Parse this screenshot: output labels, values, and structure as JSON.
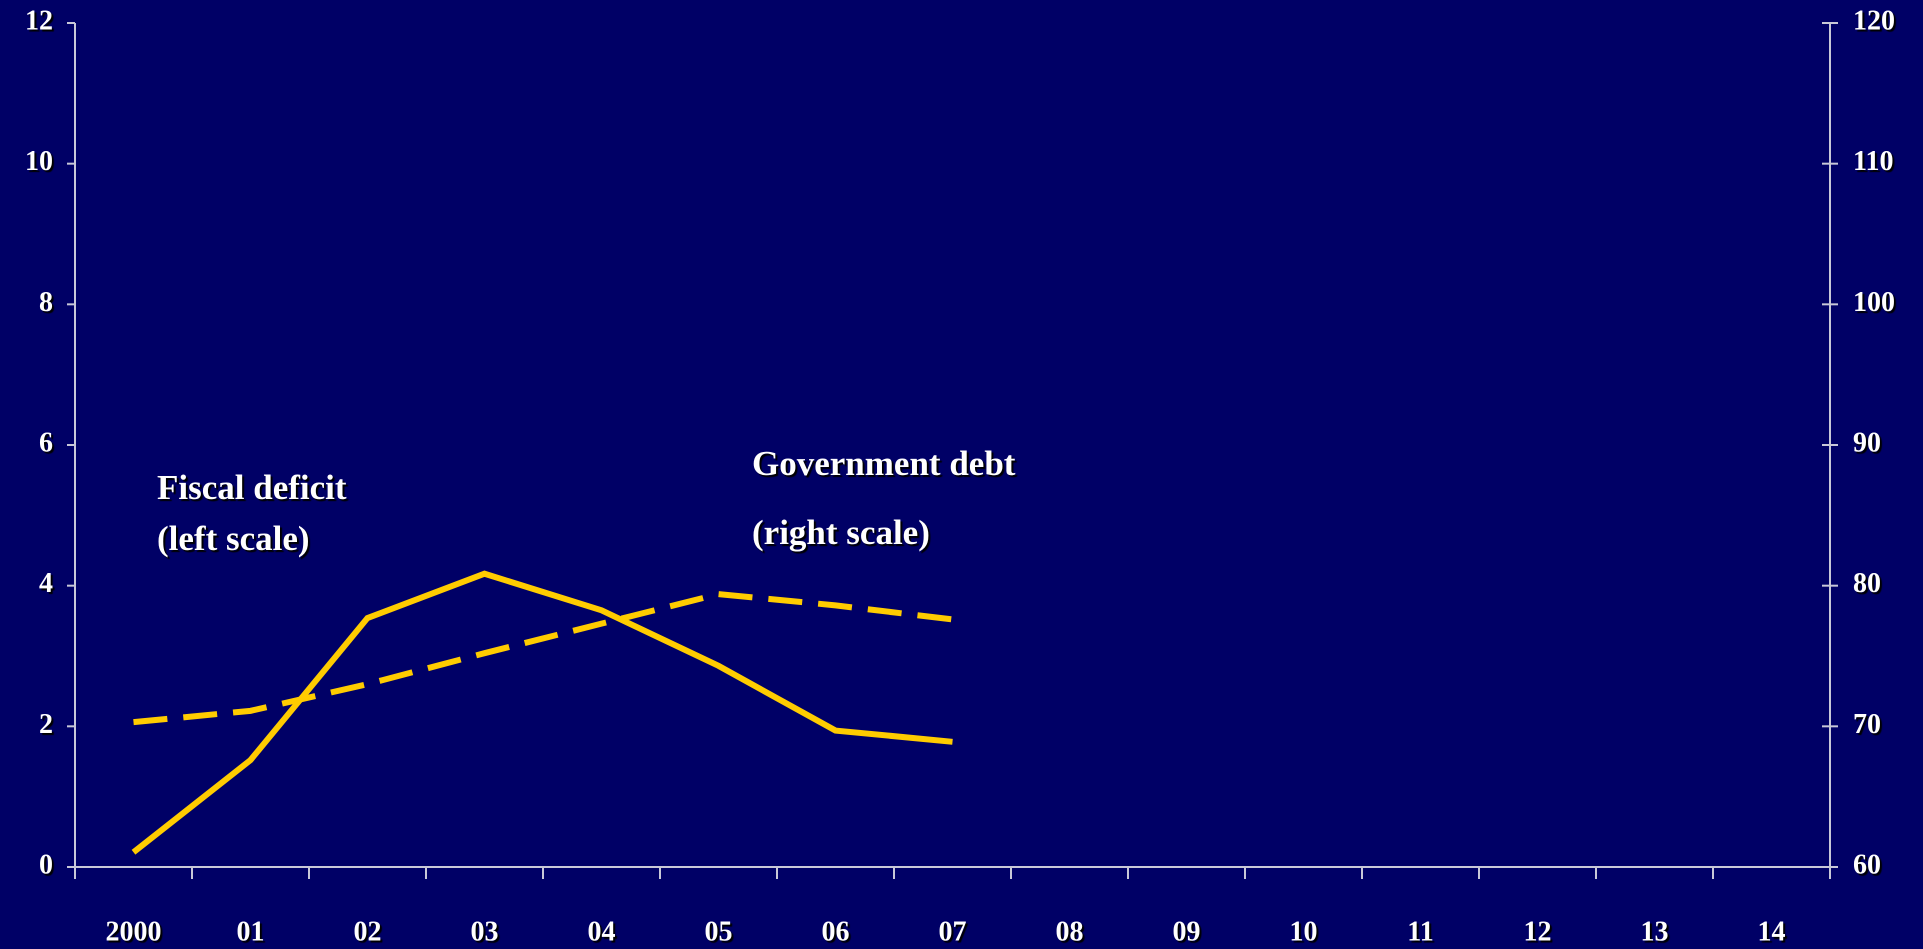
{
  "chart_data": {
    "type": "line",
    "categories": [
      "2000",
      "01",
      "02",
      "03",
      "04",
      "05",
      "06",
      "07",
      "08",
      "09",
      "10",
      "11",
      "12",
      "13",
      "14"
    ],
    "series": [
      {
        "name": "Fiscal deficit",
        "color": "#ffcc00",
        "line_style": "solid",
        "axis": "y",
        "values": [
          0.21,
          1.52,
          3.54,
          4.17,
          3.65,
          2.86,
          1.94,
          1.78,
          null,
          null,
          null,
          null,
          null,
          null,
          null
        ]
      },
      {
        "name": "Government debt",
        "color": "#ffcc00",
        "line_style": "dashed",
        "axis": "y2",
        "values": [
          70.3,
          71.1,
          73.0,
          75.2,
          77.3,
          79.4,
          78.6,
          77.6,
          null,
          null,
          null,
          null,
          null,
          null,
          null
        ]
      }
    ],
    "annotations": [
      [
        "Fiscal deficit",
        "(left scale)"
      ],
      [
        "Government debt",
        "(right scale)"
      ]
    ],
    "ylim": [
      0,
      12
    ],
    "yticks": [
      0,
      2,
      4,
      6,
      8,
      10,
      12
    ],
    "y2lim": [
      60,
      120
    ],
    "y2ticks": [
      60,
      70,
      80,
      90,
      100,
      110,
      120
    ],
    "grid": false,
    "legend": false
  }
}
